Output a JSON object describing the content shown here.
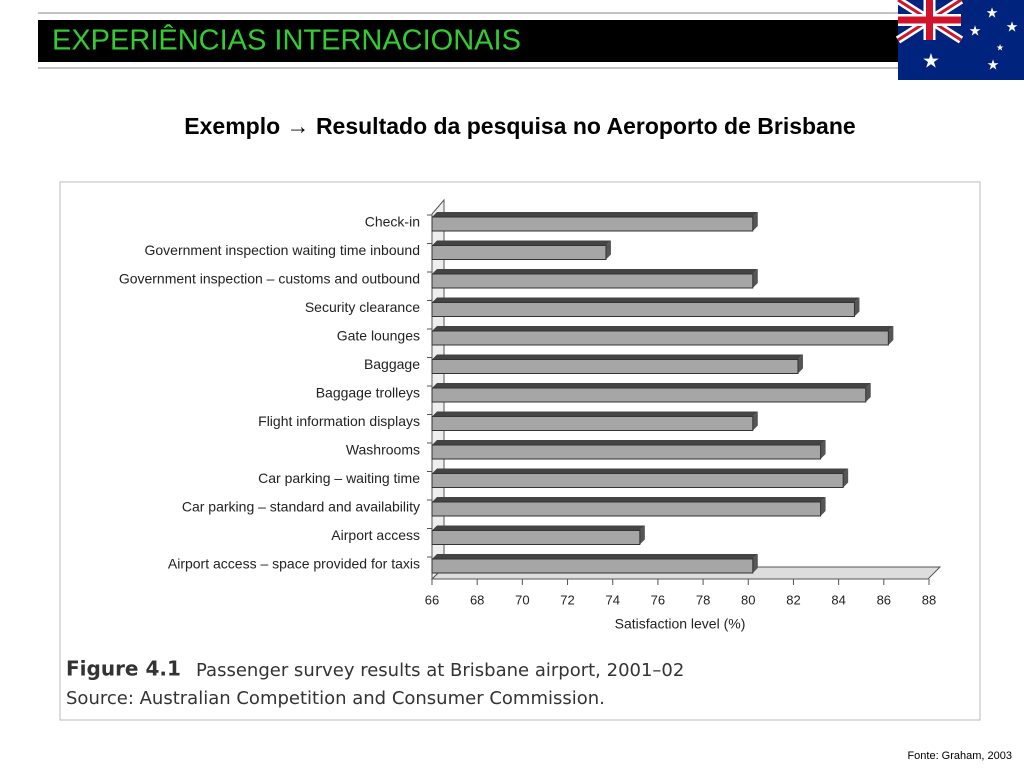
{
  "header": {
    "title": "EXPERIÊNCIAS INTERNACIONAIS"
  },
  "subtitle": "Exemplo → Resultado da pesquisa no Aeroporto de Brisbane",
  "chart_data": {
    "type": "bar",
    "orientation": "horizontal",
    "categories": [
      "Check-in",
      "Government inspection waiting time inbound",
      "Government inspection – customs and outbound",
      "Security clearance",
      "Gate lounges",
      "Baggage",
      "Baggage trolleys",
      "Flight information displays",
      "Washrooms",
      "Car parking – waiting time",
      "Car parking – standard and availability",
      "Airport access",
      "Airport access – space provided for taxis"
    ],
    "values": [
      80.2,
      73.7,
      80.2,
      84.7,
      86.2,
      82.2,
      85.2,
      80.2,
      83.2,
      84.2,
      83.2,
      75.2,
      80.2
    ],
    "color": "#a6a6a6",
    "xlabel": "Satisfaction level (%)",
    "xlim": [
      66,
      88
    ],
    "xticks": [
      66,
      68,
      70,
      72,
      74,
      76,
      78,
      80,
      82,
      84,
      86,
      88
    ]
  },
  "figure": {
    "label": "Figure 4.1",
    "caption": "Passenger survey results at Brisbane airport, 2001–02",
    "source": "Source: Australian Competition and Consumer Commission."
  },
  "footer": "Fonte: Graham, 2003"
}
